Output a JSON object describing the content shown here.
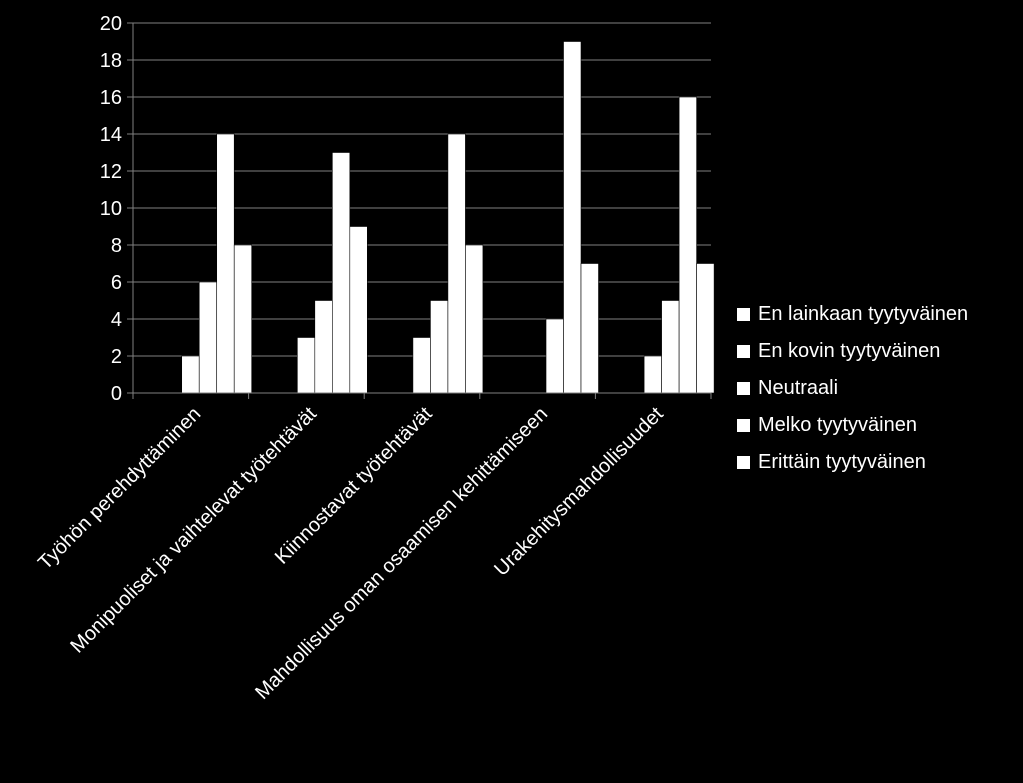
{
  "chart_data": {
    "type": "bar",
    "categories": [
      "Työhön perehdyttäminen",
      "Monipuoliset ja vaihtelevat työtehtävät",
      "Kiinnostavat työtehtävät",
      "Mahdollisuus oman osaamisen kehittämiseen",
      "Urakehitysmahdollisuudet"
    ],
    "series": [
      {
        "name": "En lainkaan tyytyväinen",
        "values": [
          0,
          0,
          0,
          0,
          0
        ]
      },
      {
        "name": "En kovin tyytyväinen",
        "values": [
          2,
          3,
          3,
          0,
          2
        ]
      },
      {
        "name": "Neutraali",
        "values": [
          6,
          5,
          5,
          4,
          5
        ]
      },
      {
        "name": "Melko tyytyväinen",
        "values": [
          14,
          13,
          14,
          19,
          16
        ]
      },
      {
        "name": "Erittäin tyytyväinen",
        "values": [
          8,
          9,
          8,
          7,
          7
        ]
      }
    ],
    "ylim": [
      0,
      20
    ],
    "yticks": [
      "0",
      "2",
      "4",
      "6",
      "8",
      "10",
      "12",
      "14",
      "16",
      "18",
      "20"
    ],
    "grid": true,
    "legend_position": "right",
    "colors": {
      "background": "#000000",
      "bars": "#ffffff",
      "grid": "#808080",
      "text": "#ffffff"
    }
  }
}
